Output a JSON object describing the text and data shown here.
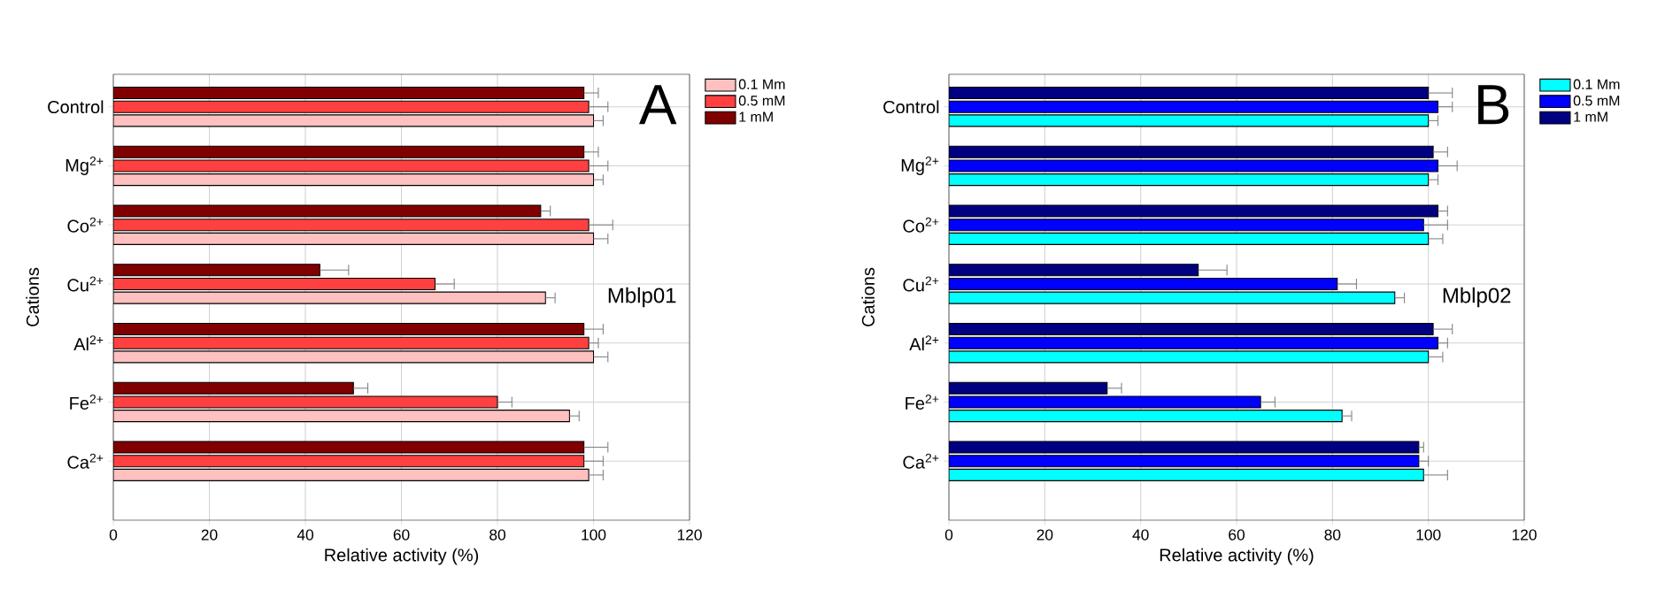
{
  "chart_data": [
    {
      "type": "bar",
      "orientation": "horizontal",
      "xlabel": "Relative activity (%)",
      "ylabel": "Cations",
      "categories": [
        "Control",
        "Mg$^{2+}$",
        "Co$^{2+}$",
        "Cu$^{2+}$",
        "Al$^{2+}$",
        "Fe$^{2+}$",
        "Ca$^{2+}$"
      ],
      "series": [
        {
          "name": "0.1 Mm",
          "color": "#ffc0c0",
          "values": [
            100,
            100,
            100,
            90,
            100,
            95,
            99
          ],
          "errors": [
            2,
            2,
            3,
            2,
            3,
            2,
            3
          ]
        },
        {
          "name": "0.5 mM",
          "color": "#ff4040",
          "values": [
            99,
            99,
            99,
            67,
            99,
            80,
            98
          ],
          "errors": [
            4,
            4,
            5,
            4,
            2,
            3,
            4
          ]
        },
        {
          "name": "1 mM",
          "color": "#800000",
          "values": [
            98,
            98,
            89,
            43,
            98,
            50,
            98
          ],
          "errors": [
            3,
            3,
            2,
            6,
            4,
            3,
            5
          ]
        }
      ],
      "xlim": [
        0,
        120
      ],
      "xticks": [
        0,
        20,
        40,
        60,
        80,
        100,
        120
      ],
      "grid": true,
      "legend": "top right",
      "annotations": [
        "A",
        "Mblp01"
      ]
    },
    {
      "type": "bar",
      "orientation": "horizontal",
      "xlabel": "Relative activity (%)",
      "ylabel": "Cations",
      "categories": [
        "Control",
        "Mg$^{2+}$",
        "Co$^{2+}$",
        "Cu$^{2+}$",
        "Al$^{2+}$",
        "Fe$^{2+}$",
        "Ca$^{2+}$"
      ],
      "series": [
        {
          "name": "0.1 Mm",
          "color": "#00ffff",
          "values": [
            100,
            100,
            100,
            93,
            100,
            82,
            99
          ],
          "errors": [
            2,
            2,
            3,
            2,
            3,
            2,
            5
          ]
        },
        {
          "name": "0.5 mM",
          "color": "#0000ff",
          "values": [
            102,
            102,
            99,
            81,
            102,
            65,
            98
          ],
          "errors": [
            3,
            4,
            5,
            4,
            2,
            3,
            2
          ]
        },
        {
          "name": "1 mM",
          "color": "#000080",
          "values": [
            100,
            101,
            102,
            52,
            101,
            33,
            98
          ],
          "errors": [
            5,
            3,
            2,
            6,
            4,
            3,
            1
          ]
        }
      ],
      "xlim": [
        0,
        120
      ],
      "xticks": [
        0,
        20,
        40,
        60,
        80,
        100,
        120
      ],
      "grid": true,
      "legend": "top right",
      "annotations": [
        "B",
        "Mblp02"
      ]
    }
  ]
}
